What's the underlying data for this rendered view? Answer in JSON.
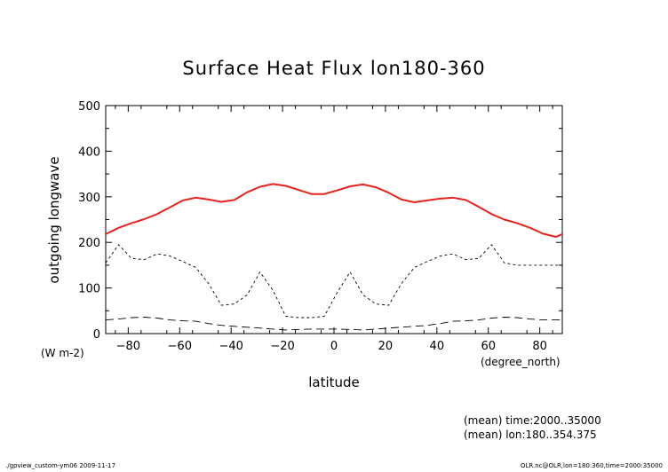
{
  "chart_data": {
    "type": "line",
    "title": "Surface Heat Flux lon180-360",
    "xlabel": "latitude",
    "ylabel": "outgoing longwave",
    "x_units": "(degree_north)",
    "y_units": "(W m-2)",
    "xlim": [
      -88.75,
      88.75
    ],
    "ylim": [
      0,
      500
    ],
    "x_ticks": [
      -80,
      -60,
      -40,
      -20,
      0,
      20,
      40,
      60,
      80
    ],
    "y_ticks": [
      0,
      100,
      200,
      300,
      400,
      500
    ],
    "grid": false,
    "series": [
      {
        "color": "#e8231e",
        "style": "solid",
        "x": [
          -88.75,
          -83.75,
          -78.75,
          -73.75,
          -68.75,
          -63.75,
          -58.75,
          -53.75,
          -48.75,
          -43.75,
          -38.75,
          -33.75,
          -28.75,
          -23.75,
          -18.75,
          -13.75,
          -8.75,
          -3.75,
          1.25,
          6.25,
          11.25,
          16.25,
          21.25,
          26.25,
          31.25,
          36.25,
          41.25,
          46.25,
          51.25,
          56.25,
          61.25,
          66.25,
          71.25,
          76.25,
          81.25,
          86.25,
          88.75
        ],
        "values": [
          218,
          232,
          242,
          251,
          262,
          277,
          292,
          298,
          294,
          289,
          293,
          310,
          322,
          328,
          324,
          315,
          306,
          306,
          314,
          323,
          327,
          321,
          309,
          294,
          288,
          292,
          296,
          298,
          293,
          278,
          262,
          250,
          242,
          232,
          219,
          212,
          218
        ]
      },
      {
        "color": "#000000",
        "style": "short-dash",
        "x": [
          -88.75,
          -83.75,
          -78.75,
          -73.75,
          -68.75,
          -63.75,
          -58.75,
          -53.75,
          -48.75,
          -43.75,
          -38.75,
          -33.75,
          -28.75,
          -23.75,
          -18.75,
          -13.75,
          -8.75,
          -3.75,
          1.25,
          6.25,
          11.25,
          16.25,
          21.25,
          26.25,
          31.25,
          36.25,
          41.25,
          46.25,
          51.25,
          56.25,
          61.25,
          66.25,
          71.25,
          76.25,
          81.25,
          86.25,
          88.75
        ],
        "values": [
          155,
          195,
          165,
          162,
          175,
          170,
          158,
          145,
          110,
          62,
          65,
          85,
          135,
          95,
          38,
          35,
          35,
          38,
          90,
          135,
          85,
          65,
          62,
          110,
          145,
          158,
          170,
          175,
          162,
          165,
          195,
          155,
          150,
          150,
          150,
          150,
          150
        ]
      },
      {
        "color": "#000000",
        "style": "long-dash",
        "x": [
          -88.75,
          -83.75,
          -78.75,
          -73.75,
          -68.75,
          -63.75,
          -58.75,
          -53.75,
          -48.75,
          -43.75,
          -38.75,
          -33.75,
          -28.75,
          -23.75,
          -18.75,
          -13.75,
          -8.75,
          -3.75,
          1.25,
          6.25,
          11.25,
          16.25,
          21.25,
          26.25,
          31.25,
          36.25,
          41.25,
          46.25,
          51.25,
          56.25,
          61.25,
          66.25,
          71.25,
          76.25,
          81.25,
          86.25,
          88.75
        ],
        "values": [
          30,
          32,
          35,
          36,
          34,
          30,
          28,
          27,
          22,
          18,
          16,
          14,
          12,
          10,
          8,
          9,
          10,
          10,
          10,
          9,
          8,
          10,
          12,
          14,
          16,
          18,
          22,
          27,
          28,
          30,
          34,
          36,
          35,
          32,
          30,
          30,
          30
        ]
      }
    ],
    "annotations": [
      "(mean) time:2000..35000",
      "(mean) lon:180..354.375"
    ]
  },
  "footer": {
    "left": "./gpview_custom-ym06  2009-11-17",
    "right": "OLR.nc@OLR,lon=180:360,time=2000:35000"
  }
}
